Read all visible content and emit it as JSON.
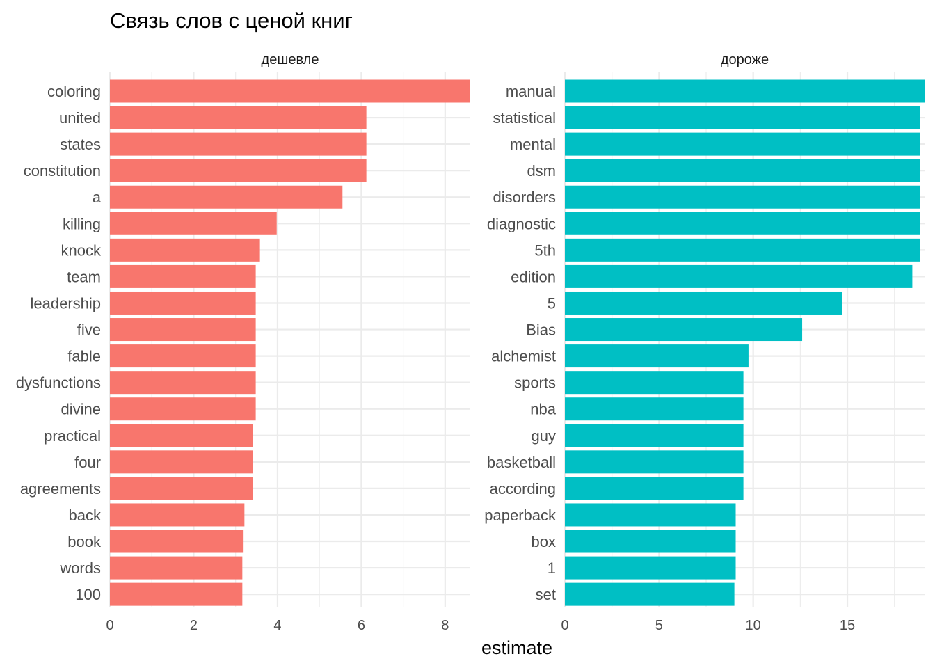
{
  "chart_data": {
    "type": "bar",
    "orientation": "horizontal",
    "title": "Связь слов с ценой книг",
    "xlabel": "estimate",
    "ylabel": "",
    "grid": true,
    "legend": "none",
    "facets": [
      {
        "label": "дешевле",
        "color": "#F8766D",
        "xlim": [
          0,
          8.6
        ],
        "ticks": [
          0,
          2,
          4,
          6,
          8
        ],
        "tick_labels": [
          "0",
          "2",
          "4",
          "6",
          "8"
        ],
        "categories": [
          "coloring",
          "united",
          "states",
          "constitution",
          "a",
          "killing",
          "knock",
          "team",
          "leadership",
          "five",
          "fable",
          "dysfunctions",
          "divine",
          "practical",
          "four",
          "agreements",
          "back",
          "book",
          "words",
          "100"
        ],
        "values": [
          8.62,
          6.12,
          6.12,
          6.12,
          5.55,
          3.98,
          3.58,
          3.48,
          3.48,
          3.48,
          3.48,
          3.48,
          3.48,
          3.42,
          3.42,
          3.42,
          3.21,
          3.19,
          3.16,
          3.16
        ]
      },
      {
        "label": "дороже",
        "color": "#00BFC4",
        "xlim": [
          0,
          19.1
        ],
        "ticks": [
          0,
          5,
          10,
          15
        ],
        "tick_labels": [
          "0",
          "5",
          "10",
          "15"
        ],
        "categories": [
          "manual",
          "statistical",
          "mental",
          "dsm",
          "disorders",
          "diagnostic",
          "5th",
          "edition",
          "5",
          "Bias",
          "alchemist",
          "sports",
          "nba",
          "guy",
          "basketball",
          "according",
          "paperback",
          "box",
          "1",
          "set"
        ],
        "values": [
          19.15,
          18.85,
          18.85,
          18.85,
          18.85,
          18.85,
          18.85,
          18.45,
          14.72,
          12.6,
          9.75,
          9.48,
          9.48,
          9.48,
          9.48,
          9.48,
          9.07,
          9.07,
          9.07,
          9.0
        ]
      }
    ]
  }
}
